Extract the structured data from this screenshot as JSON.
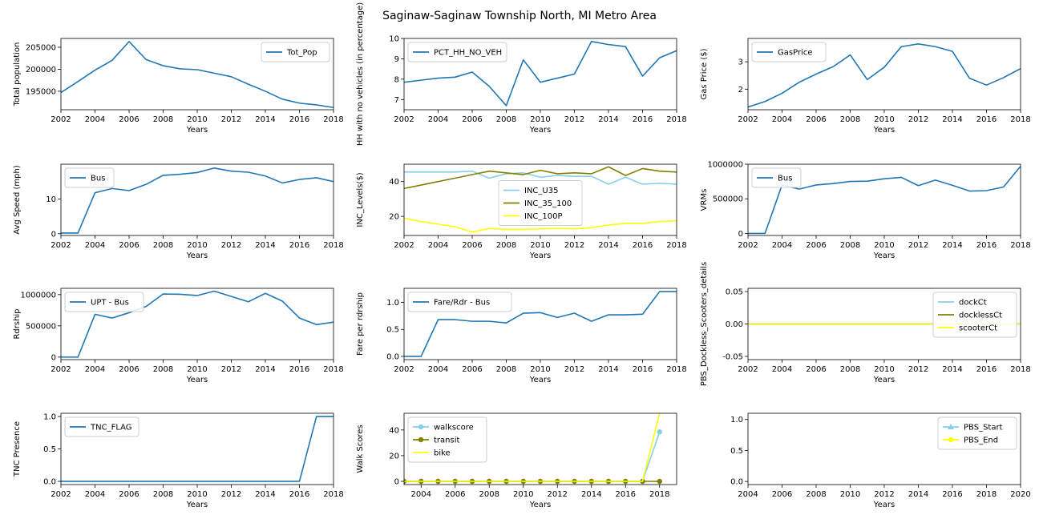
{
  "figure": {
    "title": "Saginaw-Saginaw Township North, MI Metro Area"
  },
  "colors": {
    "default": "#1f77b4",
    "light_blue": "#87ceeb",
    "olive": "#808000",
    "yellow": "#ffff00"
  },
  "chart_data": [
    {
      "id": "tot_pop",
      "type": "line",
      "xlabel": "Years",
      "ylabel": "Total population",
      "xlim": [
        2002,
        2018
      ],
      "ylim": [
        190800,
        207000
      ],
      "xticks": [
        2002,
        2004,
        2006,
        2008,
        2010,
        2012,
        2014,
        2016,
        2018
      ],
      "yticks": [
        195000,
        200000,
        205000
      ],
      "legend": "upper right",
      "x": [
        2002,
        2003,
        2004,
        2005,
        2006,
        2007,
        2008,
        2009,
        2010,
        2011,
        2012,
        2013,
        2014,
        2015,
        2016,
        2017,
        2018
      ],
      "series": [
        {
          "name": "Tot_Pop",
          "color": "#1f77b4",
          "values": [
            194700,
            197200,
            199800,
            202000,
            206300,
            202200,
            200800,
            200100,
            199900,
            199100,
            198300,
            196600,
            195000,
            193200,
            192300,
            191900,
            191300
          ]
        }
      ]
    },
    {
      "id": "pct_hh_no_veh",
      "type": "line",
      "xlabel": "Years",
      "ylabel": "HH with no vehicles (in percentage)",
      "xlim": [
        2002,
        2018
      ],
      "ylim": [
        6.5,
        10.0
      ],
      "xticks": [
        2002,
        2004,
        2006,
        2008,
        2010,
        2012,
        2014,
        2016,
        2018
      ],
      "yticks": [
        7,
        8,
        9,
        10
      ],
      "legend": "upper left",
      "x": [
        2002,
        2003,
        2004,
        2005,
        2006,
        2007,
        2008,
        2009,
        2010,
        2011,
        2012,
        2013,
        2014,
        2015,
        2016,
        2017,
        2018
      ],
      "series": [
        {
          "name": "PCT_HH_NO_VEH",
          "color": "#1f77b4",
          "values": [
            7.85,
            7.95,
            8.05,
            8.1,
            8.35,
            7.65,
            6.7,
            8.95,
            7.85,
            8.05,
            8.25,
            9.85,
            9.7,
            9.6,
            8.15,
            9.05,
            9.4
          ]
        }
      ]
    },
    {
      "id": "gas_price",
      "type": "line",
      "xlabel": "Years",
      "ylabel": "Gas Price ($)",
      "xlim": [
        2002,
        2018
      ],
      "ylim": [
        1.25,
        3.85
      ],
      "xticks": [
        2002,
        2004,
        2006,
        2008,
        2010,
        2012,
        2014,
        2016,
        2018
      ],
      "yticks": [
        2,
        3
      ],
      "legend": "upper left",
      "x": [
        2002,
        2003,
        2004,
        2005,
        2006,
        2007,
        2008,
        2009,
        2010,
        2011,
        2012,
        2013,
        2014,
        2015,
        2016,
        2017,
        2018
      ],
      "series": [
        {
          "name": "GasPrice",
          "color": "#1f77b4",
          "values": [
            1.35,
            1.55,
            1.85,
            2.25,
            2.55,
            2.82,
            3.25,
            2.35,
            2.8,
            3.55,
            3.65,
            3.55,
            3.38,
            2.4,
            2.15,
            2.42,
            2.75
          ]
        }
      ]
    },
    {
      "id": "avg_speed",
      "type": "line",
      "xlabel": "Years",
      "ylabel": "Avg Speed (mph)",
      "xlim": [
        2002,
        2018
      ],
      "ylim": [
        -0.5,
        20
      ],
      "xticks": [
        2002,
        2004,
        2006,
        2008,
        2010,
        2012,
        2014,
        2016,
        2018
      ],
      "yticks": [
        0,
        10
      ],
      "legend": "upper left",
      "x": [
        2002,
        2003,
        2004,
        2005,
        2006,
        2007,
        2008,
        2009,
        2010,
        2011,
        2012,
        2013,
        2014,
        2015,
        2016,
        2017,
        2018
      ],
      "series": [
        {
          "name": "Bus",
          "color": "#1f77b4",
          "values": [
            0.2,
            0.2,
            11.8,
            13.0,
            12.4,
            14.2,
            16.8,
            17.1,
            17.6,
            18.9,
            18.0,
            17.7,
            16.6,
            14.6,
            15.6,
            16.1,
            15.0
          ]
        }
      ]
    },
    {
      "id": "inc_levels",
      "type": "line",
      "xlabel": "Years",
      "ylabel": "INC_Levels($)",
      "xlim": [
        2002,
        2018
      ],
      "ylim": [
        9,
        50
      ],
      "xticks": [
        2002,
        2004,
        2006,
        2008,
        2010,
        2012,
        2014,
        2016,
        2018
      ],
      "yticks": [
        20,
        40
      ],
      "legend": "center",
      "x": [
        2002,
        2003,
        2004,
        2005,
        2006,
        2007,
        2008,
        2009,
        2010,
        2011,
        2012,
        2013,
        2014,
        2015,
        2016,
        2017,
        2018
      ],
      "series": [
        {
          "name": "INC_U35",
          "color": "#87ceeb",
          "values": [
            45.5,
            45.5,
            45.5,
            45.5,
            46.0,
            42.0,
            44.5,
            45.0,
            42.5,
            43.5,
            43.0,
            43.0,
            38.5,
            42.5,
            38.5,
            39.0,
            38.5
          ]
        },
        {
          "name": "INC_35_100",
          "color": "#808000",
          "values": [
            36.0,
            38.0,
            40.0,
            42.0,
            44.0,
            46.0,
            45.0,
            44.0,
            46.5,
            44.5,
            45.0,
            44.5,
            48.5,
            43.5,
            47.5,
            46.0,
            45.5
          ]
        },
        {
          "name": "INC_100P",
          "color": "#ffff00",
          "values": [
            19.0,
            17.0,
            15.5,
            14.0,
            11.0,
            13.0,
            12.5,
            12.5,
            12.8,
            13.0,
            12.8,
            13.5,
            15.0,
            16.0,
            16.0,
            17.0,
            17.5
          ]
        }
      ]
    },
    {
      "id": "vrms",
      "type": "line",
      "xlabel": "Years",
      "ylabel": "VRMs",
      "xlim": [
        2002,
        2018
      ],
      "ylim": [
        -30000,
        1000000
      ],
      "xticks": [
        2002,
        2004,
        2006,
        2008,
        2010,
        2012,
        2014,
        2016,
        2018
      ],
      "yticks": [
        0,
        500000,
        1000000
      ],
      "legend": "upper left",
      "x": [
        2002,
        2003,
        2004,
        2005,
        2006,
        2007,
        2008,
        2009,
        2010,
        2011,
        2012,
        2013,
        2014,
        2015,
        2016,
        2017,
        2018
      ],
      "series": [
        {
          "name": "Bus",
          "color": "#1f77b4",
          "values": [
            0,
            0,
            700000,
            640000,
            700000,
            720000,
            750000,
            755000,
            790000,
            810000,
            690000,
            770000,
            695000,
            612000,
            618000,
            670000,
            970000
          ]
        }
      ]
    },
    {
      "id": "rdrship",
      "type": "line",
      "xlabel": "Years",
      "ylabel": "Rdrship",
      "xlim": [
        2002,
        2018
      ],
      "ylim": [
        -40000,
        1100000
      ],
      "xticks": [
        2002,
        2004,
        2006,
        2008,
        2010,
        2012,
        2014,
        2016,
        2018
      ],
      "yticks": [
        0,
        500000,
        1000000
      ],
      "legend": "upper left",
      "x": [
        2002,
        2003,
        2004,
        2005,
        2006,
        2007,
        2008,
        2009,
        2010,
        2011,
        2012,
        2013,
        2014,
        2015,
        2016,
        2017,
        2018
      ],
      "series": [
        {
          "name": "UPT - Bus",
          "color": "#1f77b4",
          "values": [
            0,
            0,
            685000,
            625000,
            710000,
            810000,
            1010000,
            1005000,
            985000,
            1055000,
            970000,
            885000,
            1020000,
            895000,
            625000,
            520000,
            560000
          ]
        }
      ]
    },
    {
      "id": "fare_rdrship",
      "type": "line",
      "xlabel": "Years",
      "ylabel": "Fare per rdrship",
      "xlim": [
        2002,
        2018
      ],
      "ylim": [
        -0.06,
        1.26
      ],
      "xticks": [
        2002,
        2004,
        2006,
        2008,
        2010,
        2012,
        2014,
        2016,
        2018
      ],
      "yticks": [
        0.0,
        0.5,
        1.0
      ],
      "ytick_labels": [
        "0.0",
        "0.5",
        "1.0"
      ],
      "legend": "upper left",
      "x": [
        2002,
        2003,
        2004,
        2005,
        2006,
        2007,
        2008,
        2009,
        2010,
        2011,
        2012,
        2013,
        2014,
        2015,
        2016,
        2017,
        2018
      ],
      "series": [
        {
          "name": "Fare/Rdr - Bus",
          "color": "#1f77b4",
          "values": [
            0,
            0,
            0.68,
            0.68,
            0.65,
            0.65,
            0.62,
            0.8,
            0.81,
            0.72,
            0.8,
            0.65,
            0.77,
            0.77,
            0.78,
            1.2,
            1.2
          ]
        }
      ]
    },
    {
      "id": "pbs_dockless",
      "type": "line",
      "xlabel": "Years",
      "ylabel": "PBS_Dockless_Scooters_details",
      "xlim": [
        2002,
        2018
      ],
      "ylim": [
        -0.055,
        0.055
      ],
      "xticks": [
        2002,
        2004,
        2006,
        2008,
        2010,
        2012,
        2014,
        2016,
        2018
      ],
      "yticks": [
        -0.05,
        0.0,
        0.05
      ],
      "ytick_labels": [
        "-0.05",
        "0.00",
        "0.05"
      ],
      "legend": "upper right",
      "x": [
        2002,
        2003,
        2004,
        2005,
        2006,
        2007,
        2008,
        2009,
        2010,
        2011,
        2012,
        2013,
        2014,
        2015,
        2016,
        2017,
        2018
      ],
      "series": [
        {
          "name": "dockCt",
          "color": "#87ceeb",
          "values": [
            0,
            0,
            0,
            0,
            0,
            0,
            0,
            0,
            0,
            0,
            0,
            0,
            0,
            0,
            0,
            0,
            0
          ]
        },
        {
          "name": "docklessCt",
          "color": "#808000",
          "values": [
            0,
            0,
            0,
            0,
            0,
            0,
            0,
            0,
            0,
            0,
            0,
            0,
            0,
            0,
            0,
            0,
            0
          ]
        },
        {
          "name": "scooterCt",
          "color": "#ffff00",
          "values": [
            0,
            0,
            0,
            0,
            0,
            0,
            0,
            0,
            0,
            0,
            0,
            0,
            0,
            0,
            0,
            0,
            0
          ]
        }
      ]
    },
    {
      "id": "tnc_flag",
      "type": "line",
      "xlabel": "Years",
      "ylabel": "TNC Presence",
      "xlim": [
        2002,
        2018
      ],
      "ylim": [
        -0.05,
        1.05
      ],
      "xticks": [
        2002,
        2004,
        2006,
        2008,
        2010,
        2012,
        2014,
        2016,
        2018
      ],
      "yticks": [
        0.0,
        0.5,
        1.0
      ],
      "ytick_labels": [
        "0.0",
        "0.5",
        "1.0"
      ],
      "legend": "upper left",
      "x": [
        2002,
        2003,
        2004,
        2005,
        2006,
        2007,
        2008,
        2009,
        2010,
        2011,
        2012,
        2013,
        2014,
        2015,
        2016,
        2017,
        2018
      ],
      "series": [
        {
          "name": "TNC_FLAG",
          "color": "#1f77b4",
          "values": [
            0,
            0,
            0,
            0,
            0,
            0,
            0,
            0,
            0,
            0,
            0,
            0,
            0,
            0,
            0,
            1,
            1
          ]
        }
      ]
    },
    {
      "id": "walk_scores",
      "type": "line",
      "xlabel": "Years",
      "ylabel": "Walk Scores",
      "xlim": [
        2003,
        2019
      ],
      "ylim": [
        -2.5,
        53
      ],
      "xticks": [
        2004,
        2006,
        2008,
        2010,
        2012,
        2014,
        2016,
        2018
      ],
      "yticks": [
        0,
        20,
        40
      ],
      "legend": "upper left",
      "x": [
        2003,
        2004,
        2005,
        2006,
        2007,
        2008,
        2009,
        2010,
        2011,
        2012,
        2013,
        2014,
        2015,
        2016,
        2017,
        2018
      ],
      "series": [
        {
          "name": "walkscore",
          "color": "#87ceeb",
          "marker": "circle",
          "values": [
            0,
            0,
            0,
            0,
            0,
            0,
            0,
            0,
            0,
            0,
            0,
            0,
            0,
            0,
            0,
            38.5
          ]
        },
        {
          "name": "transit",
          "color": "#808000",
          "marker": "circle",
          "values": [
            0,
            0,
            0,
            0,
            0,
            0,
            0,
            0,
            0,
            0,
            0,
            0,
            0,
            0,
            0,
            0
          ]
        },
        {
          "name": "bike",
          "color": "#ffff00",
          "values": [
            0,
            0,
            0,
            0,
            0,
            0,
            0,
            0,
            0,
            0,
            0,
            0,
            0,
            0,
            0,
            53
          ]
        }
      ]
    },
    {
      "id": "pbs_start_end",
      "type": "line",
      "xlabel": "Years",
      "ylabel": "",
      "xlim": [
        2004,
        2020
      ],
      "ylim": [
        -0.05,
        1.1
      ],
      "xticks": [
        2004,
        2006,
        2008,
        2010,
        2012,
        2014,
        2016,
        2018,
        2020
      ],
      "yticks": [
        0.0,
        0.5,
        1.0
      ],
      "ytick_labels": [
        "0.0",
        "0.5",
        "1.0"
      ],
      "legend": "upper right",
      "x": [],
      "series": [
        {
          "name": "PBS_Start",
          "color": "#87ceeb",
          "marker": "triangle",
          "values": []
        },
        {
          "name": "PBS_End",
          "color": "#ffff00",
          "marker": "circle",
          "values": []
        }
      ]
    }
  ]
}
